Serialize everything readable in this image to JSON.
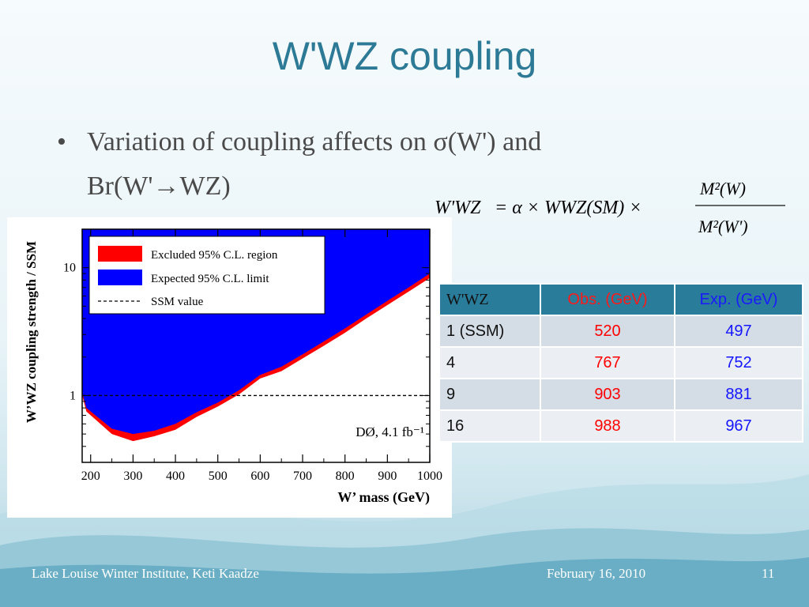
{
  "slide": {
    "title": "W'WZ coupling",
    "bullet_symbol": "•",
    "bullet_line1": "Variation of coupling affects on σ(W') and",
    "bullet_line2": "Br(W'→WZ)",
    "formula": {
      "lhs": "W'WZ",
      "rhs_middle": "= α × WWZ(SM) ×",
      "numerator": "M²(W)",
      "denominator": "M²(W')"
    },
    "footer_left": "Lake Louise Winter Institute, Keti Kaadze",
    "footer_date": "February 16, 2010",
    "footer_page": "11"
  },
  "table": {
    "headers": [
      "W'WZ",
      "Obs. (GeV)",
      "Exp. (GeV)"
    ],
    "rows": [
      [
        "1 (SSM)",
        "520",
        "497"
      ],
      [
        "4",
        "767",
        "752"
      ],
      [
        "9",
        "903",
        "881"
      ],
      [
        "16",
        "988",
        "967"
      ]
    ]
  },
  "colors": {
    "title": "#2d7a96",
    "excluded": "#ff0000",
    "expected": "#0000ff",
    "table_header": "#2a7c9b"
  },
  "chart_data": {
    "type": "area",
    "xlabel": "W’ mass (GeV)",
    "ylabel": "W’WZ coupling strength / SSM",
    "xlim": [
      180,
      1000
    ],
    "ylim": [
      0.3,
      20
    ],
    "yscale": "log",
    "x_ticks": [
      200,
      300,
      400,
      500,
      600,
      700,
      800,
      900,
      1000
    ],
    "y_ticks": [
      1,
      10
    ],
    "annotation": "DØ, 4.1 fb⁻¹",
    "legend": {
      "placement": "top-left",
      "entries": [
        "Excluded 95% C.L. region",
        "Expected 95% C.L. limit",
        "SSM value"
      ]
    },
    "series": [
      {
        "name": "Excluded 95% C.L. region",
        "x": [
          180,
          190,
          250,
          300,
          350,
          400,
          450,
          500,
          550,
          600,
          650,
          700,
          750,
          800,
          850,
          900,
          950,
          1000
        ],
        "values": [
          1.0,
          0.75,
          0.5,
          0.44,
          0.48,
          0.54,
          0.68,
          0.82,
          1.02,
          1.36,
          1.55,
          1.95,
          2.45,
          3.1,
          4.0,
          5.1,
          6.5,
          8.3
        ]
      },
      {
        "name": "Expected 95% C.L. limit",
        "x": [
          180,
          190,
          250,
          300,
          350,
          400,
          450,
          500,
          550,
          600,
          650,
          700,
          750,
          800,
          850,
          900,
          950,
          1000
        ],
        "values": [
          1.05,
          0.8,
          0.55,
          0.5,
          0.53,
          0.6,
          0.74,
          0.88,
          1.1,
          1.45,
          1.68,
          2.1,
          2.65,
          3.35,
          4.3,
          5.5,
          7.0,
          9.0
        ]
      },
      {
        "name": "SSM value",
        "x": [
          180,
          1000
        ],
        "values": [
          1,
          1
        ]
      }
    ]
  }
}
